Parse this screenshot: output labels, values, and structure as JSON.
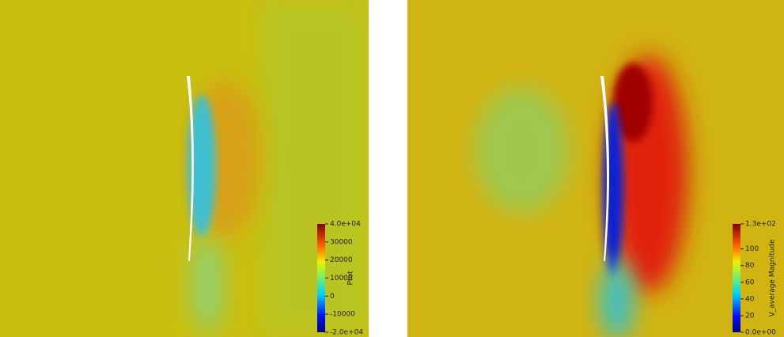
{
  "chart_data": [
    {
      "type": "heatmap",
      "colorbar": {
        "label": "Ptot",
        "lim": [
          -20000,
          40000
        ],
        "ticks": [
          {
            "value": 40000,
            "label": "4.0e+04"
          },
          30000,
          20000,
          10000,
          0,
          -10000,
          {
            "value": -20000,
            "label": "-2.0e+04"
          }
        ]
      }
    },
    {
      "type": "heatmap",
      "colorbar": {
        "label": "V_average Magnitude",
        "lim": [
          0,
          130
        ],
        "ticks": [
          {
            "value": 130,
            "label": "1.3e+02"
          },
          100,
          80,
          60,
          40,
          20,
          {
            "value": 0,
            "label": "0.0e+00"
          }
        ]
      }
    }
  ]
}
